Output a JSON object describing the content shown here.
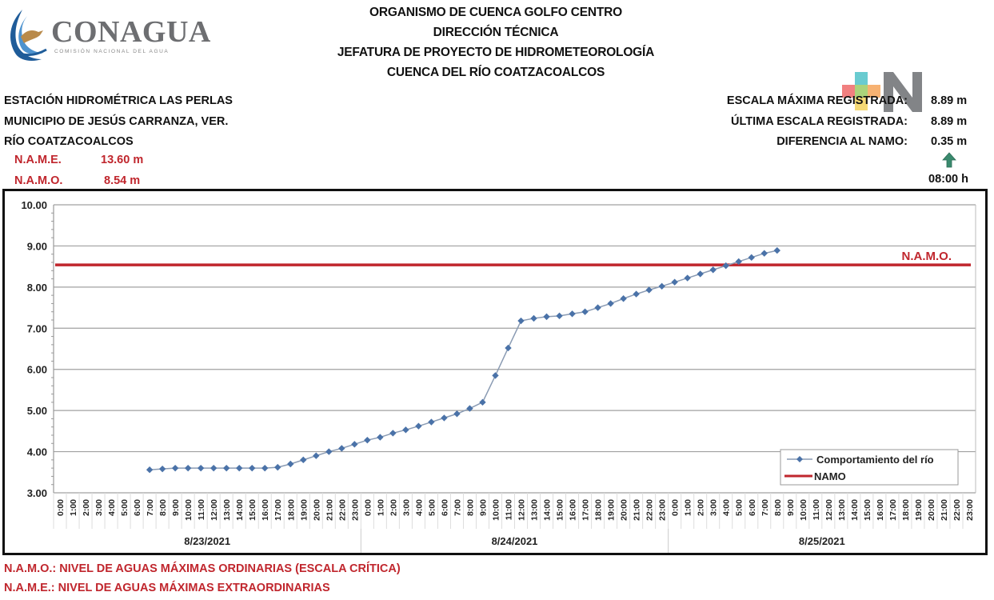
{
  "logo": {
    "name": "CONAGUA",
    "subtitle": "COMISIÓN NACIONAL DEL AGUA"
  },
  "header": {
    "lines": [
      "ORGANISMO DE CUENCA GOLFO CENTRO",
      "DIRECCIÓN TÉCNICA",
      "JEFATURA DE PROYECTO DE HIDROMETEOROLOGÍA",
      "CUENCA DEL RÍO COATZACOALCOS"
    ]
  },
  "station": {
    "name": "ESTACIÓN HIDROMÉTRICA LAS PERLAS",
    "municipality": "MUNICIPIO DE JESÚS CARRANZA, VER.",
    "river": "RÍO COATZACOALCOS",
    "name_label": "N.A.M.E.",
    "name_value": "13.60 m",
    "namo_label": "N.A.M.O.",
    "namo_value": "8.54 m"
  },
  "summary": {
    "max_label": "ESCALA MÁXIMA REGISTRADA:",
    "max_value": "8.89 m",
    "last_label": "ÚLTIMA ESCALA REGISTRADA:",
    "last_value": "8.89 m",
    "diff_label": "DIFERENCIA AL NAMO:",
    "diff_value": "0.35 m",
    "trend_icon": "arrow-up-icon",
    "time": "08:00 h",
    "arrow_color": "#3a8a6e"
  },
  "footnotes": {
    "namo": "N.A.M.O.: NIVEL DE AGUAS MÁXIMAS ORDINARIAS (ESCALA CRÍTICA)",
    "name": "N.A.M.E.: NIVEL DE AGUAS MÁXIMAS EXTRAORDINARIAS"
  },
  "colors": {
    "series": "#4a72a8",
    "namo": "#c0262d",
    "grid": "#a0a0a0",
    "footnote": "#c0262d"
  },
  "chart_data": {
    "type": "line",
    "title": "",
    "xlabel": "",
    "ylabel": "",
    "ylim": [
      3.0,
      10.0
    ],
    "yticks": [
      "3.00",
      "4.00",
      "5.00",
      "6.00",
      "7.00",
      "8.00",
      "9.00",
      "10.00"
    ],
    "grid": true,
    "legend_position": "lower-right",
    "dates": [
      "8/23/2021",
      "8/24/2021",
      "8/25/2021"
    ],
    "hour_labels": [
      "0:00",
      "1:00",
      "2:00",
      "3:00",
      "4:00",
      "5:00",
      "6:00",
      "7:00",
      "8:00",
      "9:00",
      "10:00",
      "11:00",
      "12:00",
      "13:00",
      "14:00",
      "15:00",
      "16:00",
      "17:00",
      "18:00",
      "19:00",
      "20:00",
      "21:00",
      "22:00",
      "23:00"
    ],
    "annotation": "N.A.M.O.",
    "series": [
      {
        "name": "Comportamiento del río",
        "start_index": 7,
        "values": [
          3.56,
          3.58,
          3.6,
          3.6,
          3.6,
          3.6,
          3.6,
          3.6,
          3.6,
          3.6,
          3.62,
          3.7,
          3.8,
          3.9,
          4.0,
          4.08,
          4.18,
          4.28,
          4.35,
          4.45,
          4.53,
          4.62,
          4.72,
          4.82,
          4.92,
          5.05,
          5.2,
          5.85,
          6.52,
          7.18,
          7.24,
          7.28,
          7.3,
          7.35,
          7.4,
          7.5,
          7.6,
          7.72,
          7.83,
          7.93,
          8.02,
          8.12,
          8.22,
          8.32,
          8.42,
          8.52,
          8.62,
          8.72,
          8.82,
          8.89
        ]
      },
      {
        "name": "NAMO",
        "constant": 8.54
      }
    ]
  }
}
